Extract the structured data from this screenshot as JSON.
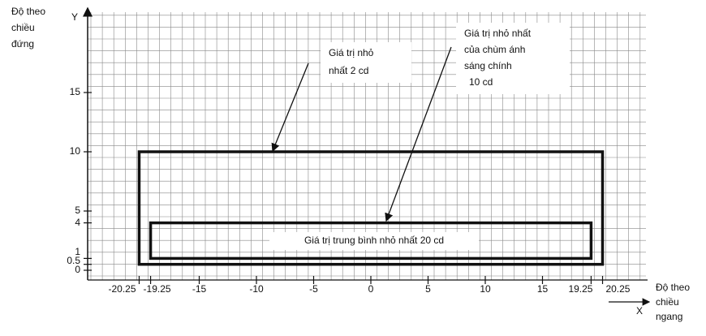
{
  "axes": {
    "y_label": [
      "Độ theo",
      "chiều",
      "đứng"
    ],
    "y_letter": "Y",
    "x_label": [
      "Độ theo",
      "chiều",
      "ngang"
    ],
    "x_letter": "X",
    "x_ticks": [
      -20.25,
      -19.25,
      -15,
      -10,
      -5,
      0,
      5,
      10,
      15,
      19.25,
      20.25
    ],
    "y_ticks": [
      0,
      0.5,
      1,
      4,
      5,
      10,
      15
    ]
  },
  "rectangles": [
    {
      "x": [
        -20.25,
        20.25
      ],
      "y": [
        0.5,
        10
      ]
    },
    {
      "x": [
        -19.25,
        19.25
      ],
      "y": [
        1,
        4
      ]
    }
  ],
  "annotations": [
    {
      "lines": [
        "Giá trị nhỏ",
        "nhất 2 cd"
      ]
    },
    {
      "lines": [
        "Giá trị nhỏ nhất",
        "của chùm ánh",
        "sáng chính",
        "10 cd"
      ]
    },
    {
      "text": "Giá trị trung bình nhỏ nhất 20 cd"
    }
  ]
}
